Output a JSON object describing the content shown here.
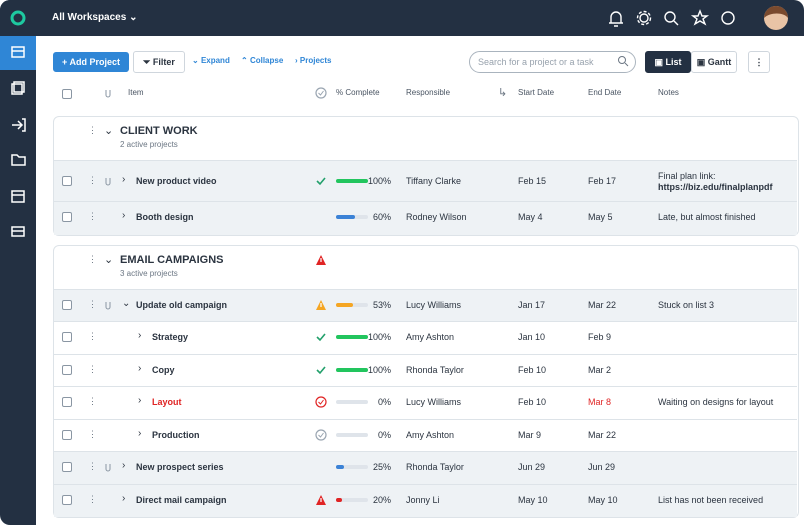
{
  "topbar": {
    "workspace": "All Workspaces"
  },
  "toolbar": {
    "add_project": "Add Project",
    "filter": "Filter",
    "expand": "Expand",
    "collapse": "Collapse",
    "projects": "Projects",
    "search_placeholder": "Search for a project or a task",
    "views": [
      "List",
      "Gantt"
    ]
  },
  "table": {
    "columns": [
      "Item",
      "% Complete",
      "Responsible",
      "Start Date",
      "End Date",
      "Notes"
    ],
    "groups": [
      {
        "title": "CLIENT WORK",
        "subtitle": "2 active projects",
        "status": null,
        "rows": [
          {
            "item": "New product video",
            "level": 0,
            "attachment": true,
            "status": "done",
            "complete": {
              "value": 100,
              "label": "100%"
            },
            "color": "#22c55e",
            "responsible": "Tiffany Clarke",
            "start": "Feb 15",
            "end": "Feb 17",
            "notes": "Final plan link:",
            "notes_link": "https://biz.edu/finalplanpdf"
          },
          {
            "item": "Booth design",
            "level": 0,
            "attachment": false,
            "status": null,
            "complete": {
              "value": 60,
              "label": "60%"
            },
            "color": "#3b82d6",
            "responsible": "Rodney Wilson",
            "start": "May 4",
            "end": "May 5",
            "notes": "Late, but almost finished"
          }
        ]
      },
      {
        "title": "EMAIL CAMPAIGNS",
        "subtitle": "3 active projects",
        "status": "alert",
        "rows": [
          {
            "item": "Update old campaign",
            "level": 0,
            "attachment": true,
            "expanded": true,
            "status": "warning",
            "complete": {
              "value": 53,
              "label": "53%"
            },
            "color": "#f5a623",
            "responsible": "Lucy Williams",
            "start": "Jan 17",
            "end": "Mar 22",
            "notes": "Stuck on list 3"
          },
          {
            "item": "Strategy",
            "level": 1,
            "status": "done",
            "complete": {
              "value": 100,
              "label": "100%"
            },
            "color": "#22c55e",
            "responsible": "Amy Ashton",
            "start": "Jan 10",
            "end": "Feb 9"
          },
          {
            "item": "Copy",
            "level": 1,
            "status": "done",
            "complete": {
              "value": 100,
              "label": "100%"
            },
            "color": "#22c55e",
            "responsible": "Rhonda Taylor",
            "start": "Feb 10",
            "end": "Mar 2"
          },
          {
            "item": "Layout",
            "level": 1,
            "status": "overdue",
            "complete": {
              "value": 0,
              "label": "0%"
            },
            "color": "#3b82d6",
            "responsible": "Lucy Williams",
            "start": "Feb 10",
            "end": "Mar 8",
            "notes": "Waiting on designs for layout"
          },
          {
            "item": "Production",
            "level": 1,
            "status": "pending",
            "complete": {
              "value": 0,
              "label": "0%"
            },
            "color": "#3b82d6",
            "responsible": "Amy Ashton",
            "start": "Mar 9",
            "end": "Mar 22"
          },
          {
            "item": "New prospect series",
            "level": 0,
            "attachment": true,
            "status": null,
            "complete": {
              "value": 25,
              "label": "25%"
            },
            "color": "#3b82d6",
            "responsible": "Rhonda Taylor",
            "start": "Jun 29",
            "end": "Jun 29"
          },
          {
            "item": "Direct mail campaign",
            "level": 0,
            "attachment": false,
            "status": "alert",
            "complete": {
              "value": 20,
              "label": "20%"
            },
            "color": "#e02424",
            "responsible": "Jonny Li",
            "start": "May 10",
            "end": "May 10",
            "notes": "List has not been received"
          }
        ]
      }
    ]
  }
}
